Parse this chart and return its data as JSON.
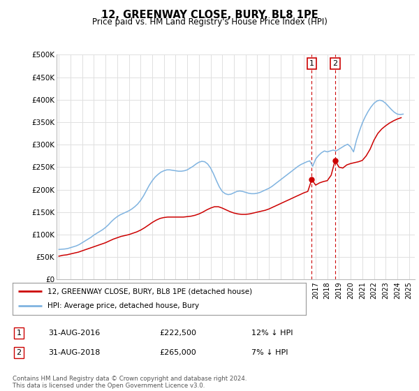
{
  "title": "12, GREENWAY CLOSE, BURY, BL8 1PE",
  "subtitle": "Price paid vs. HM Land Registry's House Price Index (HPI)",
  "ylabel_ticks": [
    "£0",
    "£50K",
    "£100K",
    "£150K",
    "£200K",
    "£250K",
    "£300K",
    "£350K",
    "£400K",
    "£450K",
    "£500K"
  ],
  "ylim": [
    0,
    500000
  ],
  "xlim_start": 1994.8,
  "xlim_end": 2025.5,
  "hpi_color": "#7fb3e0",
  "price_color": "#cc0000",
  "marker1_date": 2016.67,
  "marker2_date": 2018.67,
  "marker1_price": 222500,
  "marker2_price": 265000,
  "legend_line1": "12, GREENWAY CLOSE, BURY, BL8 1PE (detached house)",
  "legend_line2": "HPI: Average price, detached house, Bury",
  "footnote": "Contains HM Land Registry data © Crown copyright and database right 2024.\nThis data is licensed under the Open Government Licence v3.0.",
  "background_color": "#ffffff",
  "grid_color": "#e0e0e0",
  "hpi_data_x": [
    1995.0,
    1995.25,
    1995.5,
    1995.75,
    1996.0,
    1996.25,
    1996.5,
    1996.75,
    1997.0,
    1997.25,
    1997.5,
    1997.75,
    1998.0,
    1998.25,
    1998.5,
    1998.75,
    1999.0,
    1999.25,
    1999.5,
    1999.75,
    2000.0,
    2000.25,
    2000.5,
    2000.75,
    2001.0,
    2001.25,
    2001.5,
    2001.75,
    2002.0,
    2002.25,
    2002.5,
    2002.75,
    2003.0,
    2003.25,
    2003.5,
    2003.75,
    2004.0,
    2004.25,
    2004.5,
    2004.75,
    2005.0,
    2005.25,
    2005.5,
    2005.75,
    2006.0,
    2006.25,
    2006.5,
    2006.75,
    2007.0,
    2007.25,
    2007.5,
    2007.75,
    2008.0,
    2008.25,
    2008.5,
    2008.75,
    2009.0,
    2009.25,
    2009.5,
    2009.75,
    2010.0,
    2010.25,
    2010.5,
    2010.75,
    2011.0,
    2011.25,
    2011.5,
    2011.75,
    2012.0,
    2012.25,
    2012.5,
    2012.75,
    2013.0,
    2013.25,
    2013.5,
    2013.75,
    2014.0,
    2014.25,
    2014.5,
    2014.75,
    2015.0,
    2015.25,
    2015.5,
    2015.75,
    2016.0,
    2016.25,
    2016.5,
    2016.75,
    2017.0,
    2017.25,
    2017.5,
    2017.75,
    2018.0,
    2018.25,
    2018.5,
    2018.75,
    2019.0,
    2019.25,
    2019.5,
    2019.75,
    2020.0,
    2020.25,
    2020.5,
    2020.75,
    2021.0,
    2021.25,
    2021.5,
    2021.75,
    2022.0,
    2022.25,
    2022.5,
    2022.75,
    2023.0,
    2023.25,
    2023.5,
    2023.75,
    2024.0,
    2024.25,
    2024.5
  ],
  "hpi_data_y": [
    67000,
    67500,
    68000,
    69000,
    71000,
    73000,
    75000,
    78000,
    82000,
    86000,
    90000,
    94000,
    99000,
    103000,
    107000,
    111000,
    116000,
    122000,
    129000,
    135000,
    140000,
    144000,
    147000,
    150000,
    153000,
    157000,
    162000,
    168000,
    176000,
    186000,
    198000,
    210000,
    220000,
    228000,
    234000,
    239000,
    242000,
    244000,
    244000,
    243000,
    242000,
    241000,
    241000,
    242000,
    244000,
    248000,
    252000,
    257000,
    261000,
    263000,
    262000,
    257000,
    248000,
    235000,
    220000,
    206000,
    196000,
    191000,
    189000,
    190000,
    193000,
    196000,
    197000,
    196000,
    194000,
    192000,
    191000,
    191000,
    192000,
    194000,
    197000,
    200000,
    203000,
    207000,
    212000,
    217000,
    222000,
    227000,
    232000,
    237000,
    242000,
    247000,
    252000,
    256000,
    259000,
    262000,
    264000,
    252000,
    268000,
    276000,
    282000,
    286000,
    284000,
    286000,
    288000,
    286000,
    290000,
    294000,
    298000,
    301000,
    295000,
    284000,
    310000,
    330000,
    348000,
    362000,
    374000,
    384000,
    392000,
    397000,
    399000,
    397000,
    392000,
    385000,
    378000,
    372000,
    368000,
    367000,
    368000
  ],
  "price_data_x": [
    1995.0,
    1995.33,
    1995.67,
    1996.0,
    1996.33,
    1996.67,
    1997.0,
    1997.33,
    1997.67,
    1998.0,
    1998.33,
    1998.67,
    1999.0,
    1999.33,
    1999.67,
    2000.0,
    2000.33,
    2000.67,
    2001.0,
    2001.33,
    2001.67,
    2002.0,
    2002.33,
    2002.67,
    2003.0,
    2003.33,
    2003.67,
    2004.0,
    2004.33,
    2004.67,
    2005.0,
    2005.33,
    2005.67,
    2006.0,
    2006.33,
    2006.67,
    2007.0,
    2007.33,
    2007.67,
    2008.0,
    2008.33,
    2008.67,
    2009.0,
    2009.33,
    2009.67,
    2010.0,
    2010.33,
    2010.67,
    2011.0,
    2011.33,
    2011.67,
    2012.0,
    2012.33,
    2012.67,
    2013.0,
    2013.33,
    2013.67,
    2014.0,
    2014.33,
    2014.67,
    2015.0,
    2015.33,
    2015.67,
    2016.0,
    2016.33,
    2016.67,
    2017.0,
    2017.33,
    2017.67,
    2018.0,
    2018.33,
    2018.67,
    2019.0,
    2019.33,
    2019.67,
    2020.0,
    2020.33,
    2020.67,
    2021.0,
    2021.33,
    2021.67,
    2022.0,
    2022.33,
    2022.67,
    2023.0,
    2023.33,
    2023.67,
    2024.0,
    2024.33
  ],
  "price_data_y": [
    52000,
    54000,
    55000,
    57000,
    59000,
    61000,
    64000,
    67000,
    70000,
    73000,
    76000,
    79000,
    82000,
    86000,
    90000,
    93000,
    96000,
    98000,
    100000,
    103000,
    106000,
    110000,
    115000,
    121000,
    127000,
    132000,
    136000,
    138000,
    139000,
    139000,
    139000,
    139000,
    139000,
    140000,
    141000,
    143000,
    146000,
    150000,
    155000,
    159000,
    162000,
    162000,
    159000,
    155000,
    151000,
    148000,
    146000,
    145000,
    145000,
    146000,
    148000,
    150000,
    152000,
    154000,
    157000,
    161000,
    165000,
    169000,
    173000,
    177000,
    181000,
    185000,
    189000,
    193000,
    196000,
    222500,
    210000,
    215000,
    218000,
    220000,
    232000,
    265000,
    250000,
    248000,
    255000,
    258000,
    260000,
    262000,
    265000,
    275000,
    290000,
    310000,
    325000,
    335000,
    342000,
    348000,
    353000,
    357000,
    360000
  ]
}
